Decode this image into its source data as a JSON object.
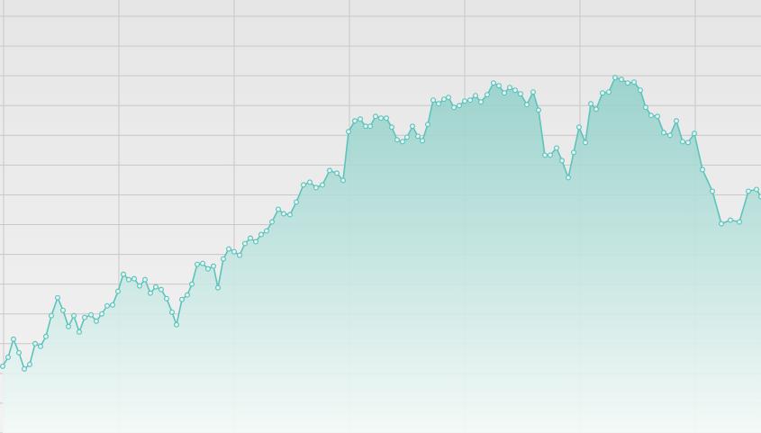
{
  "chart_data": {
    "type": "area",
    "color": "#5cc4bc",
    "grid": true,
    "xlim": [
      -4,
      841
    ],
    "ylim": [
      0,
      480
    ],
    "xticks": [
      0,
      128,
      256,
      384,
      512,
      640,
      768
    ],
    "yticks": [
      0,
      33,
      66,
      99,
      132,
      165,
      198,
      231,
      264,
      297,
      330,
      363,
      396,
      429,
      462
    ],
    "x": [
      -1,
      5,
      11,
      17,
      23,
      29,
      35,
      41,
      47,
      53,
      60,
      66,
      72,
      78,
      84,
      90,
      97,
      103,
      109,
      115,
      121,
      127,
      133,
      139,
      145,
      151,
      157,
      163,
      169,
      175,
      181,
      187,
      192,
      198,
      204,
      209,
      215,
      221,
      227,
      233,
      238,
      244,
      250,
      256,
      262,
      268,
      274,
      280,
      286,
      292,
      298,
      305,
      311,
      318,
      325,
      333,
      340,
      347,
      354,
      362,
      370,
      377,
      383,
      390,
      396,
      402,
      407,
      413,
      419,
      425,
      431,
      437,
      443,
      448,
      454,
      460,
      465,
      471,
      477,
      483,
      489,
      494,
      500,
      506,
      512,
      518,
      524,
      530,
      537,
      544,
      550,
      556,
      562,
      568,
      574,
      581,
      588,
      594,
      601,
      607,
      614,
      620,
      627,
      633,
      639,
      646,
      652,
      658,
      665,
      672,
      679,
      686,
      693,
      700,
      707,
      713,
      719,
      726,
      733,
      740,
      747,
      754,
      760,
      767,
      776,
      787,
      797,
      807,
      817,
      827,
      836,
      841
    ],
    "values": [
      74,
      84,
      104,
      89,
      71,
      76,
      99,
      96,
      107,
      130,
      150,
      136,
      118,
      130,
      112,
      128,
      131,
      124,
      132,
      141,
      142,
      157,
      176,
      170,
      171,
      163,
      170,
      155,
      162,
      159,
      149,
      134,
      120,
      148,
      153,
      165,
      187,
      188,
      182,
      185,
      161,
      193,
      204,
      201,
      197,
      210,
      216,
      212,
      220,
      224,
      234,
      248,
      243,
      242,
      256,
      275,
      278,
      272,
      275,
      291,
      288,
      280,
      334,
      346,
      348,
      340,
      340,
      351,
      349,
      349,
      339,
      325,
      323,
      328,
      340,
      329,
      324,
      342,
      369,
      365,
      370,
      372,
      361,
      363,
      368,
      369,
      374,
      367,
      375,
      388,
      385,
      377,
      383,
      380,
      376,
      364,
      378,
      358,
      308,
      308,
      316,
      302,
      283,
      311,
      339,
      322,
      365,
      359,
      377,
      378,
      394,
      392,
      388,
      389,
      380,
      361,
      352,
      351,
      333,
      330,
      346,
      323,
      322,
      332,
      292,
      268,
      232,
      236,
      234,
      268,
      270,
      262
    ]
  }
}
